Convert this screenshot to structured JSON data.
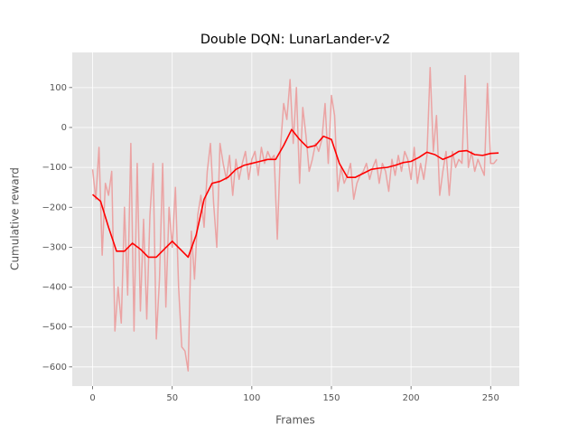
{
  "chart_data": {
    "type": "line",
    "title": "Double DQN: LunarLander-v2",
    "x_label": "Frames",
    "y_label": "Cumulative reward",
    "xlim": [
      -12.8,
      268
    ],
    "ylim": [
      -648,
      188
    ],
    "xticks": [
      0,
      50,
      100,
      150,
      200,
      250
    ],
    "yticks": [
      {
        "value": -600,
        "label": "−600"
      },
      {
        "value": -500,
        "label": "−500"
      },
      {
        "value": -400,
        "label": "−400"
      },
      {
        "value": -300,
        "label": "−300"
      },
      {
        "value": -200,
        "label": "−200"
      },
      {
        "value": -100,
        "label": "−100"
      },
      0,
      100
    ],
    "grid": true,
    "series": [
      {
        "color": "#eba3a3",
        "x": [
          0,
          2,
          4,
          6,
          8,
          10,
          12,
          14,
          16,
          18,
          20,
          22,
          24,
          26,
          28,
          30,
          32,
          34,
          36,
          38,
          40,
          42,
          44,
          46,
          48,
          50,
          52,
          54,
          56,
          58,
          60,
          62,
          64,
          66,
          68,
          70,
          72,
          74,
          76,
          78,
          80,
          82,
          84,
          86,
          88,
          90,
          92,
          94,
          96,
          98,
          100,
          102,
          104,
          106,
          108,
          110,
          112,
          114,
          116,
          118,
          120,
          122,
          124,
          126,
          128,
          130,
          132,
          134,
          136,
          138,
          140,
          142,
          144,
          146,
          148,
          150,
          152,
          154,
          156,
          158,
          160,
          162,
          164,
          166,
          168,
          170,
          172,
          174,
          176,
          178,
          180,
          182,
          184,
          186,
          188,
          190,
          192,
          194,
          196,
          198,
          200,
          202,
          204,
          206,
          208,
          210,
          212,
          214,
          216,
          218,
          220,
          222,
          224,
          226,
          228,
          230,
          232,
          234,
          236,
          238,
          240,
          242,
          244,
          246,
          248,
          250,
          252,
          254
        ],
        "values": [
          -105,
          -180,
          -50,
          -320,
          -140,
          -170,
          -110,
          -510,
          -400,
          -490,
          -200,
          -420,
          -40,
          -510,
          -90,
          -460,
          -230,
          -480,
          -220,
          -90,
          -530,
          -380,
          -90,
          -450,
          -200,
          -300,
          -150,
          -400,
          -550,
          -560,
          -610,
          -260,
          -380,
          -220,
          -170,
          -250,
          -110,
          -40,
          -190,
          -300,
          -40,
          -90,
          -130,
          -70,
          -170,
          -80,
          -130,
          -90,
          -60,
          -130,
          -80,
          -60,
          -120,
          -50,
          -90,
          -60,
          -80,
          -70,
          -280,
          -50,
          60,
          20,
          120,
          -40,
          100,
          -140,
          50,
          -20,
          -110,
          -80,
          -40,
          -60,
          -30,
          60,
          -90,
          80,
          30,
          -160,
          -100,
          -140,
          -120,
          -90,
          -180,
          -140,
          -120,
          -110,
          -90,
          -130,
          -100,
          -80,
          -140,
          -90,
          -110,
          -160,
          -80,
          -120,
          -70,
          -110,
          -60,
          -80,
          -130,
          -50,
          -140,
          -90,
          -130,
          -70,
          150,
          -60,
          30,
          -170,
          -110,
          -60,
          -170,
          -60,
          -100,
          -80,
          -90,
          130,
          -100,
          -60,
          -110,
          -80,
          -100,
          -120,
          110,
          -90,
          -90,
          -80
        ]
      },
      {
        "color": "#ff0000",
        "x": [
          0,
          5,
          10,
          15,
          20,
          25,
          30,
          35,
          40,
          45,
          50,
          55,
          60,
          65,
          70,
          75,
          80,
          85,
          90,
          95,
          100,
          105,
          110,
          115,
          120,
          125,
          130,
          135,
          140,
          145,
          150,
          155,
          160,
          165,
          170,
          175,
          180,
          185,
          190,
          195,
          200,
          205,
          210,
          215,
          220,
          225,
          230,
          235,
          240,
          245,
          250,
          255
        ],
        "values": [
          -168,
          -185,
          -250,
          -310,
          -310,
          -290,
          -305,
          -325,
          -325,
          -305,
          -285,
          -305,
          -325,
          -270,
          -180,
          -140,
          -135,
          -125,
          -105,
          -95,
          -90,
          -85,
          -80,
          -80,
          -45,
          -5,
          -30,
          -50,
          -45,
          -22,
          -30,
          -90,
          -125,
          -125,
          -115,
          -105,
          -102,
          -100,
          -95,
          -88,
          -85,
          -75,
          -62,
          -68,
          -80,
          -72,
          -60,
          -58,
          -68,
          -70,
          -65,
          -64
        ]
      }
    ]
  }
}
